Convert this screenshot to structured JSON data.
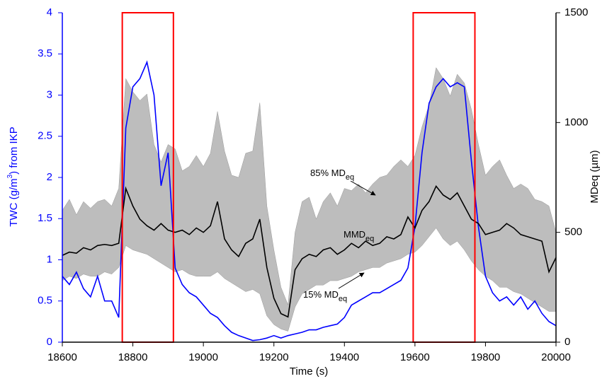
{
  "chart_data": {
    "type": "line",
    "x_label": "Time (s)",
    "y_label": [
      "TWC (g/m",
      "3",
      ") from IKP"
    ],
    "y2_label": "MDeq (µm)",
    "xlim": [
      18600,
      20000
    ],
    "xticks": [
      18600,
      18800,
      19000,
      19200,
      19400,
      19600,
      19800,
      20000
    ],
    "ylim": [
      0,
      4
    ],
    "yticks": [
      0,
      0.5,
      1,
      1.5,
      2,
      2.5,
      3,
      3.5,
      4
    ],
    "y2lim": [
      0,
      1500
    ],
    "y2ticks": [
      0,
      500,
      1000,
      1500
    ],
    "x": [
      18600,
      18620,
      18640,
      18660,
      18680,
      18700,
      18720,
      18740,
      18760,
      18780,
      18800,
      18820,
      18840,
      18860,
      18880,
      18900,
      18920,
      18940,
      18960,
      18980,
      19000,
      19020,
      19040,
      19060,
      19080,
      19100,
      19120,
      19140,
      19160,
      19180,
      19200,
      19220,
      19240,
      19260,
      19280,
      19300,
      19320,
      19340,
      19360,
      19380,
      19400,
      19420,
      19440,
      19460,
      19480,
      19500,
      19520,
      19540,
      19560,
      19580,
      19600,
      19620,
      19640,
      19660,
      19680,
      19700,
      19720,
      19740,
      19760,
      19780,
      19800,
      19820,
      19840,
      19860,
      19880,
      19900,
      19920,
      19940,
      19960,
      19980,
      20000
    ],
    "band": {
      "axis": "y2",
      "color": "#bdbdbd",
      "upper": [
        600,
        650,
        580,
        640,
        610,
        640,
        650,
        620,
        700,
        1200,
        1140,
        1100,
        1130,
        900,
        820,
        900,
        880,
        780,
        800,
        850,
        800,
        860,
        1050,
        870,
        760,
        750,
        860,
        870,
        1090,
        620,
        420,
        250,
        170,
        500,
        640,
        660,
        560,
        640,
        680,
        620,
        700,
        690,
        720,
        680,
        720,
        750,
        760,
        800,
        830,
        800,
        850,
        980,
        1080,
        1250,
        1200,
        1120,
        1220,
        1180,
        1060,
        900,
        760,
        800,
        830,
        760,
        700,
        720,
        700,
        650,
        640,
        620,
        500
      ],
      "lower": [
        280,
        300,
        290,
        310,
        300,
        300,
        320,
        310,
        340,
        440,
        420,
        410,
        400,
        380,
        360,
        340,
        320,
        330,
        310,
        300,
        300,
        300,
        320,
        290,
        270,
        250,
        230,
        240,
        220,
        120,
        80,
        60,
        50,
        160,
        220,
        240,
        260,
        260,
        280,
        280,
        290,
        300,
        320,
        330,
        340,
        340,
        360,
        370,
        380,
        400,
        410,
        440,
        480,
        520,
        470,
        440,
        460,
        420,
        370,
        330,
        300,
        280,
        250,
        250,
        230,
        220,
        200,
        180,
        160,
        140,
        140
      ]
    },
    "series": [
      {
        "color": "#0000ff",
        "values": [
          0.8,
          0.7,
          0.85,
          0.65,
          0.55,
          0.8,
          0.5,
          0.5,
          0.3,
          2.6,
          3.1,
          3.2,
          3.4,
          3.0,
          1.9,
          2.3,
          0.9,
          0.7,
          0.6,
          0.55,
          0.45,
          0.35,
          0.3,
          0.2,
          0.12,
          0.08,
          0.05,
          0.02,
          0.03,
          0.05,
          0.08,
          0.05,
          0.08,
          0.1,
          0.12,
          0.15,
          0.15,
          0.18,
          0.2,
          0.22,
          0.3,
          0.45,
          0.5,
          0.55,
          0.6,
          0.6,
          0.65,
          0.7,
          0.75,
          0.9,
          1.4,
          2.3,
          2.9,
          3.1,
          3.2,
          3.1,
          3.15,
          3.1,
          2.2,
          1.4,
          0.8,
          0.6,
          0.5,
          0.55,
          0.45,
          0.55,
          0.4,
          0.5,
          0.35,
          0.25,
          0.2
        ]
      },
      {
        "axis": "y2",
        "color": "#000000",
        "values": [
          395,
          410,
          405,
          430,
          420,
          440,
          445,
          440,
          450,
          700,
          620,
          560,
          530,
          510,
          540,
          510,
          500,
          510,
          490,
          520,
          500,
          530,
          640,
          470,
          420,
          390,
          450,
          470,
          560,
          340,
          200,
          130,
          115,
          330,
          380,
          400,
          390,
          420,
          430,
          400,
          420,
          450,
          430,
          460,
          440,
          450,
          480,
          470,
          490,
          570,
          520,
          600,
          640,
          710,
          670,
          650,
          680,
          620,
          560,
          540,
          490,
          500,
          510,
          540,
          520,
          490,
          480,
          470,
          460,
          320,
          385
        ]
      }
    ],
    "highlights": {
      "color": "#ff0000",
      "spans": [
        [
          18770,
          18915
        ],
        [
          19595,
          19770
        ]
      ]
    },
    "annotations": [
      [
        "85% MD",
        "eq"
      ],
      [
        "MMD",
        "eq"
      ],
      [
        "15% MD",
        "eq"
      ]
    ]
  }
}
